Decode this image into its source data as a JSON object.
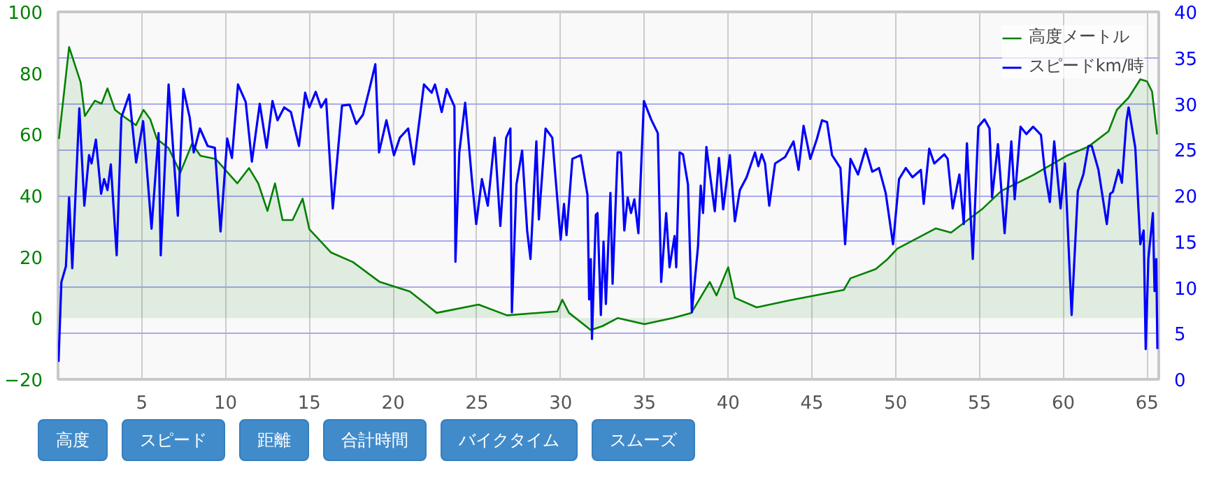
{
  "chart_data": {
    "type": "area",
    "x": [
      0.05,
      0.66,
      1.35,
      1.6,
      2.2,
      2.6,
      2.95,
      3.4,
      4.0,
      4.65,
      5.1,
      5.5,
      5.9,
      6.6,
      7.3,
      8.0,
      8.5,
      9.4,
      10.05,
      10.7,
      11.4,
      11.95,
      12.5,
      12.95,
      13.4,
      14.0,
      14.6,
      15.0,
      16.3,
      17.6,
      19.2,
      21.0,
      21.9,
      22.6,
      25.1,
      26.8,
      29.8,
      30.1,
      30.5,
      31.8,
      32.5,
      33.4,
      35.0,
      36.7,
      37.8,
      38.9,
      39.3,
      40.0,
      40.4,
      41.7,
      43.6,
      46.9,
      47.3,
      48.8,
      49.5,
      50.1,
      52.4,
      53.3,
      55.2,
      56.3,
      58.2,
      60.2,
      61.5,
      62.7,
      63.2,
      63.9,
      64.6,
      65.0,
      65.3,
      65.6
    ],
    "series": [
      {
        "name": "高度メートル",
        "color": "#008000",
        "values": [
          58.5,
          88.5,
          77,
          66,
          71,
          70,
          75,
          68,
          65.5,
          63,
          68,
          65,
          58.5,
          55.5,
          47.5,
          57,
          53,
          52,
          48,
          44,
          49,
          44,
          35,
          44,
          32,
          32,
          39,
          29,
          21.4,
          18.3,
          11.8,
          8.7,
          4.8,
          1.7,
          4.4,
          0.9,
          2.2,
          6,
          1.7,
          -3.9,
          -2.6,
          0,
          -2,
          0,
          1.7,
          11.8,
          7.4,
          16.6,
          6.6,
          3.5,
          5.7,
          9.2,
          13,
          16,
          19.2,
          22.7,
          29.3,
          27.9,
          35.8,
          41.5,
          46.7,
          53,
          56,
          61,
          68,
          72,
          78,
          77.3,
          74,
          60
        ]
      },
      {
        "name": "スピードkm/時",
        "type": "line",
        "axis": "y2",
        "color": "#0000ff",
        "x": [
          0.03,
          0.2,
          0.47,
          0.66,
          0.85,
          1.27,
          1.57,
          1.85,
          2.0,
          2.26,
          2.57,
          2.75,
          2.95,
          3.15,
          3.5,
          3.78,
          4.25,
          4.66,
          5.08,
          5.58,
          6.0,
          6.13,
          6.6,
          7.15,
          7.48,
          7.86,
          8.1,
          8.47,
          8.93,
          9.36,
          9.7,
          10.1,
          10.38,
          10.74,
          11.2,
          11.57,
          12.04,
          12.45,
          12.8,
          13.1,
          13.5,
          13.9,
          14.38,
          14.75,
          15.0,
          15.38,
          15.7,
          16.0,
          16.4,
          16.95,
          17.4,
          17.8,
          18.2,
          18.56,
          18.94,
          19.16,
          19.6,
          20.05,
          20.4,
          20.9,
          21.24,
          21.84,
          22.3,
          22.5,
          22.9,
          23.2,
          23.66,
          23.72,
          23.95,
          24.3,
          24.7,
          24.96,
          25.3,
          25.65,
          26.06,
          26.4,
          26.75,
          27.0,
          27.09,
          27.36,
          27.7,
          28.0,
          28.2,
          28.55,
          28.7,
          29.1,
          29.5,
          30.0,
          30.2,
          30.35,
          30.7,
          31.2,
          31.6,
          31.7,
          31.8,
          31.87,
          32.1,
          32.2,
          32.4,
          32.56,
          32.7,
          32.97,
          33.1,
          33.4,
          33.6,
          33.8,
          34.0,
          34.2,
          34.4,
          34.64,
          34.97,
          35.4,
          35.8,
          36.0,
          36.3,
          36.5,
          36.8,
          36.9,
          37.1,
          37.3,
          37.6,
          37.83,
          38.2,
          38.36,
          38.5,
          38.7,
          39.2,
          39.45,
          39.7,
          40.1,
          40.4,
          40.7,
          41.1,
          41.6,
          41.8,
          42.0,
          42.2,
          42.45,
          42.8,
          43.4,
          43.9,
          44.2,
          44.5,
          44.9,
          45.3,
          45.6,
          45.9,
          46.2,
          46.7,
          46.98,
          47.3,
          47.75,
          48.2,
          48.6,
          49.0,
          49.4,
          49.84,
          50.2,
          50.6,
          51.0,
          51.5,
          51.67,
          52.0,
          52.3,
          52.9,
          53.1,
          53.4,
          53.8,
          54.06,
          54.25,
          54.6,
          54.93,
          55.3,
          55.6,
          55.75,
          56.1,
          56.5,
          56.9,
          57.1,
          57.45,
          57.8,
          58.2,
          58.67,
          58.9,
          59.2,
          59.46,
          59.84,
          60.1,
          60.5,
          60.87,
          61.2,
          61.5,
          61.7,
          62.1,
          62.6,
          62.8,
          62.96,
          63.3,
          63.5,
          63.77,
          63.9,
          64.3,
          64.6,
          64.8,
          64.92,
          65.08,
          65.35,
          65.45,
          65.55,
          65.62
        ],
        "values": [
          1.9,
          10.6,
          12.3,
          19.8,
          12.1,
          29.5,
          18.9,
          24.4,
          23.5,
          26.1,
          20.2,
          21.8,
          20.6,
          23.4,
          13.5,
          28.5,
          31,
          23.6,
          28.1,
          16.4,
          26.8,
          13.5,
          32.1,
          17.8,
          31.6,
          28.5,
          24.7,
          27.3,
          25.4,
          25.2,
          16.1,
          26.2,
          24.1,
          32.1,
          30.2,
          23.7,
          30,
          25.2,
          30.3,
          28.2,
          29.6,
          29.1,
          25.4,
          31.2,
          29.6,
          31.3,
          29.6,
          30.5,
          18.6,
          29.8,
          29.9,
          27.8,
          28.8,
          31.4,
          34.3,
          24.7,
          28.2,
          24.4,
          26.3,
          27.3,
          23.4,
          32.1,
          31.2,
          32.1,
          29.1,
          31.6,
          29.7,
          12.8,
          24.7,
          30.1,
          21.8,
          16.9,
          21.8,
          18.9,
          26.3,
          16.7,
          26.3,
          27.3,
          7.3,
          21.2,
          24.9,
          16.2,
          13.1,
          25.9,
          17.4,
          27.3,
          26.3,
          15.2,
          19.1,
          15.7,
          24.0,
          24.4,
          20.1,
          8.7,
          13.1,
          4.4,
          17.9,
          18.1,
          7.0,
          15.0,
          8.2,
          20.3,
          10.4,
          24.7,
          24.7,
          16.2,
          19.8,
          18.1,
          19.6,
          15.9,
          30.3,
          28.3,
          26.8,
          10.6,
          18.1,
          12.2,
          15.6,
          12.2,
          24.7,
          24.5,
          21.2,
          7.3,
          14.5,
          21.1,
          18.1,
          25.3,
          18.3,
          24.1,
          18.5,
          24.4,
          17.2,
          20.6,
          22.0,
          24.7,
          23.2,
          24.5,
          23.5,
          18.9,
          23.5,
          24.2,
          25.9,
          22.8,
          27.6,
          24.0,
          26.2,
          28.2,
          28.0,
          24.4,
          23.0,
          14.7,
          24.0,
          22.3,
          25.1,
          22.6,
          23.0,
          20.3,
          14.7,
          21.8,
          23.0,
          22.0,
          22.8,
          19.1,
          25.1,
          23.5,
          24.5,
          24.0,
          18.6,
          22.3,
          16.9,
          25.7,
          13.1,
          27.5,
          28.3,
          27.3,
          19.8,
          25.6,
          15.9,
          25.9,
          19.6,
          27.5,
          26.7,
          27.5,
          26.6,
          22.6,
          19.3,
          25.9,
          18.6,
          23.5,
          7.0,
          20.5,
          22.3,
          25.4,
          25.4,
          22.8,
          16.9,
          20.2,
          20.4,
          22.8,
          21.4,
          28.1,
          29.6,
          25.2,
          14.7,
          16.2,
          3.3,
          13.1,
          18.1,
          9.6,
          13.1,
          3.3
        ]
      }
    ],
    "xlim": [
      0,
      65.7
    ],
    "xticks": [
      5,
      10,
      15,
      20,
      25,
      30,
      35,
      40,
      45,
      50,
      55,
      60,
      65
    ],
    "ylim": [
      -20,
      100
    ],
    "yticks": [
      -20,
      0,
      20,
      40,
      60,
      80,
      100
    ],
    "y2lim": [
      0,
      40
    ],
    "y2ticks": [
      0,
      5,
      10,
      15,
      20,
      25,
      30,
      35,
      40
    ],
    "grid": true,
    "legend": "top right",
    "annotations": [
      "高度",
      "スピード",
      "距離",
      "合計時間",
      "バイクタイム",
      "スムーズ"
    ]
  }
}
